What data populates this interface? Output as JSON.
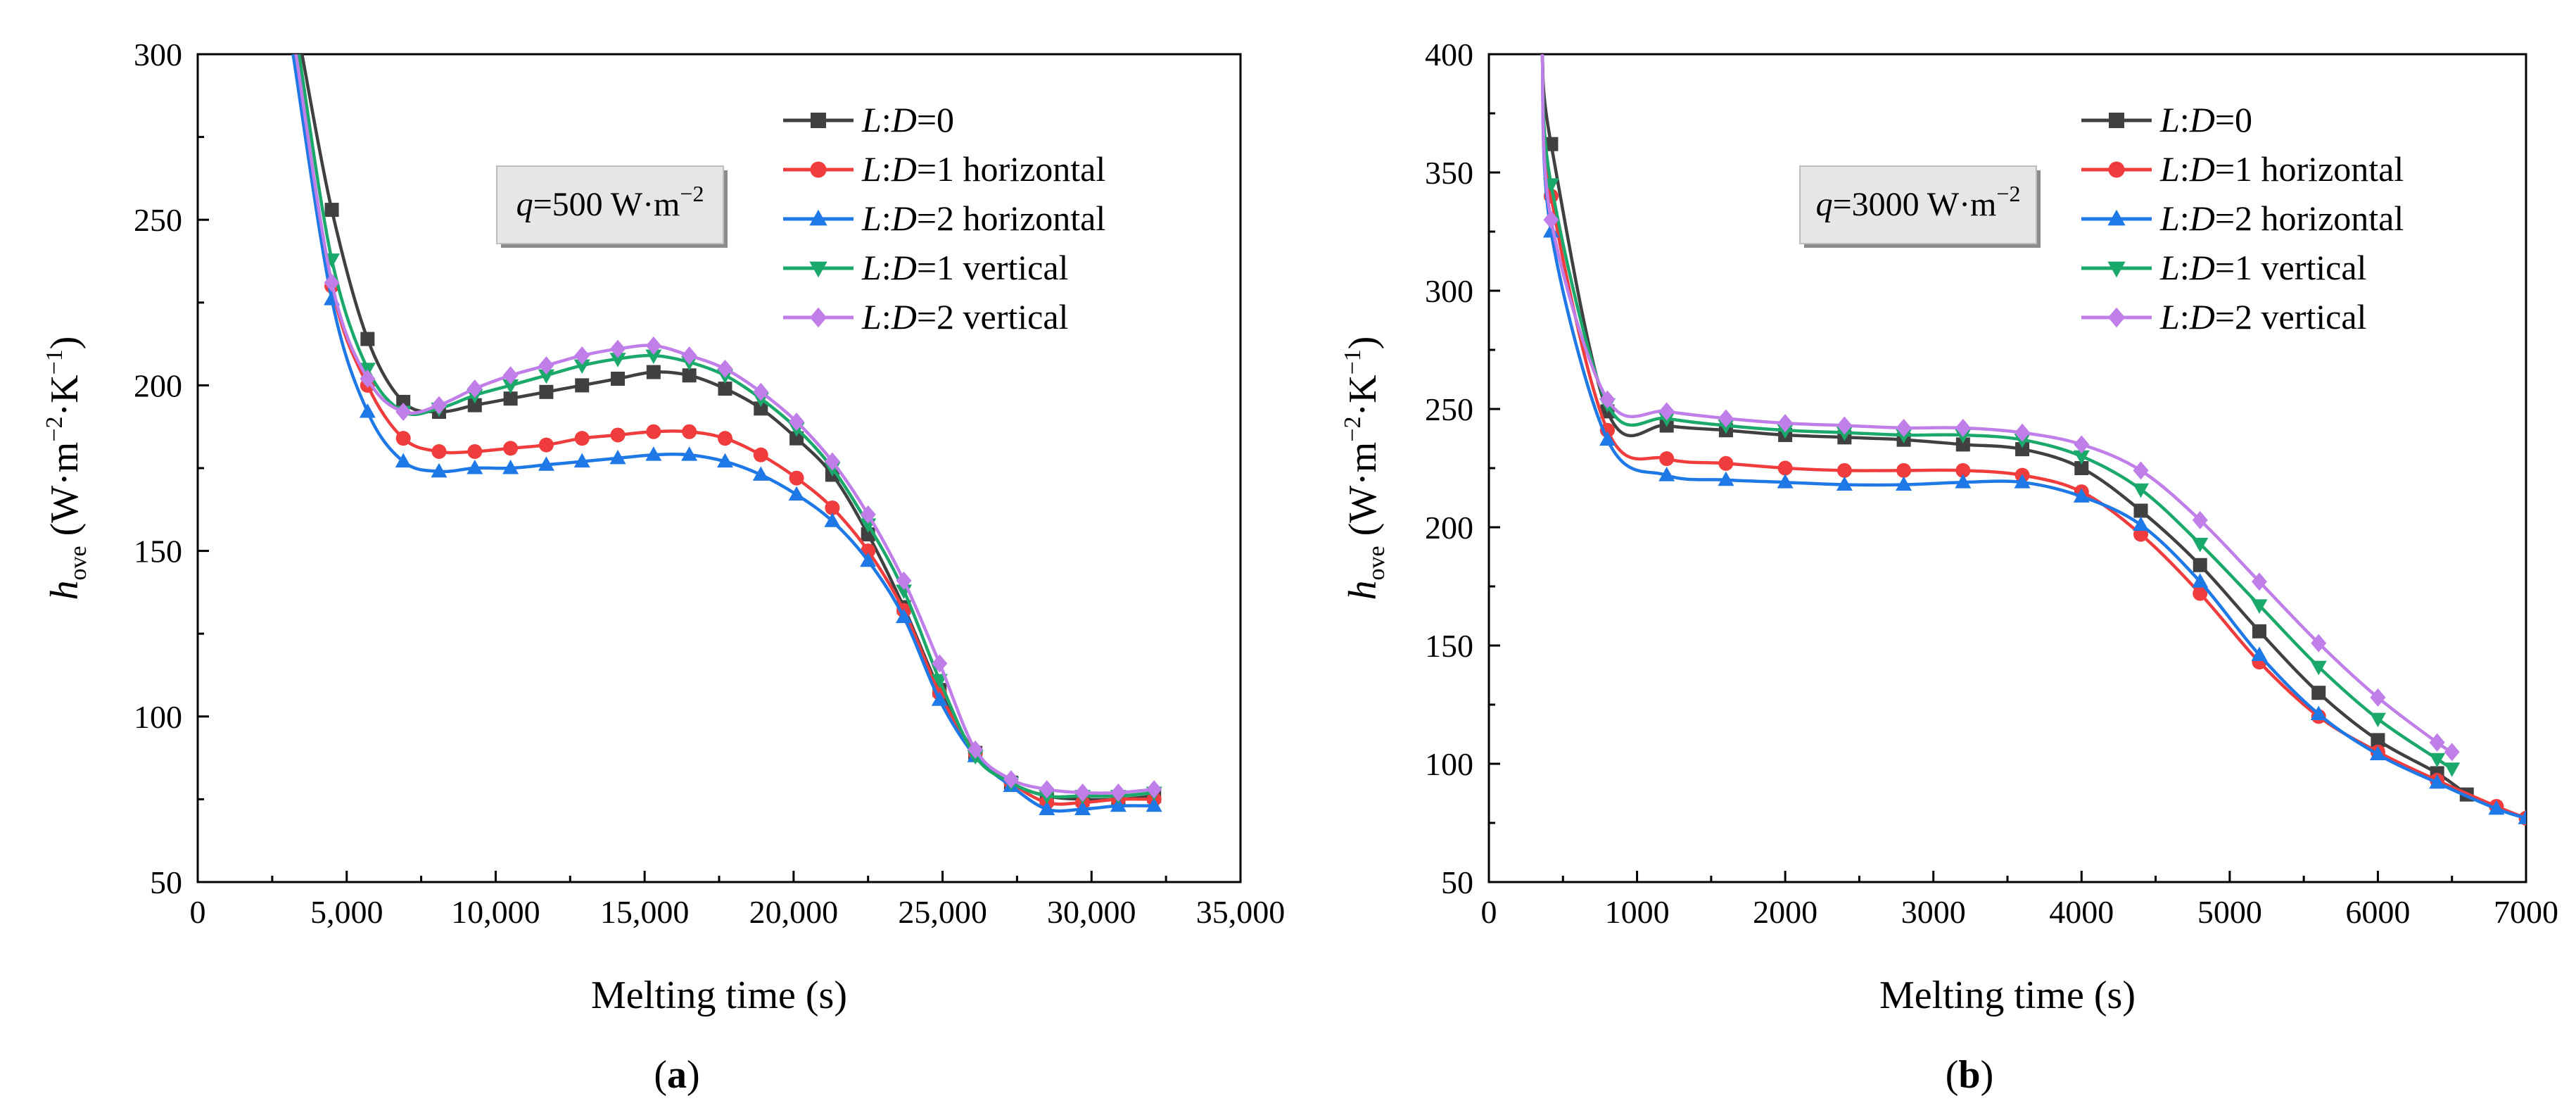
{
  "chart_data": [
    {
      "type": "line",
      "panel_label": "(a)",
      "annotation": {
        "q_symbol": "q",
        "text": "=500 W·m",
        "sup": "−2"
      },
      "xlabel": "Melting time (s)",
      "ylabel": {
        "main": "h",
        "sub": "ove",
        "units_pre": " (W·m",
        "sup1": "−2",
        "mid": "·K",
        "sup2": "−1",
        "close": ")"
      },
      "xlim": [
        0,
        35000
      ],
      "ylim": [
        50,
        300
      ],
      "xticks": [
        0,
        5000,
        10000,
        15000,
        20000,
        25000,
        30000,
        35000
      ],
      "xtick_labels": [
        "0",
        "5,000",
        "10,000",
        "15,000",
        "20,000",
        "25,000",
        "30,000",
        "35,000"
      ],
      "yticks": [
        50,
        100,
        150,
        200,
        250,
        300
      ],
      "ytick_labels": [
        "50",
        "100",
        "150",
        "200",
        "250",
        "300"
      ],
      "legend_position": "top-right",
      "series": [
        {
          "name": "L:D=0",
          "legend_ratio": "L",
          "legend_colon": ":",
          "legend_d": "D",
          "legend_rest": "=0",
          "color": "#404040",
          "marker": "square",
          "x": [
            3500,
            4500,
            5700,
            6900,
            8100,
            9300,
            10500,
            11700,
            12900,
            14100,
            15300,
            16500,
            17700,
            18900,
            20100,
            21300,
            22500,
            23700,
            24900,
            26100,
            27300,
            28500,
            29700,
            30900,
            32100
          ],
          "y": [
            300,
            253,
            214,
            195,
            192,
            194,
            196,
            198,
            200,
            202,
            204,
            203,
            199,
            193,
            184,
            173,
            155,
            133,
            108,
            89,
            80,
            76,
            75,
            75,
            76
          ]
        },
        {
          "name": "L:D=1 horizontal",
          "legend_ratio": "L",
          "legend_colon": ":",
          "legend_d": "D",
          "legend_rest": "=1  horizontal",
          "color": "#f03c3c",
          "marker": "circle",
          "x": [
            3300,
            4500,
            5700,
            6900,
            8100,
            9300,
            10500,
            11700,
            12900,
            14100,
            15300,
            16500,
            17700,
            18900,
            20100,
            21300,
            22500,
            23700,
            24900,
            26100,
            27300,
            28500,
            29700,
            30900,
            32100
          ],
          "y": [
            300,
            230,
            200,
            184,
            180,
            180,
            181,
            182,
            184,
            185,
            186,
            186,
            184,
            179,
            172,
            163,
            150,
            132,
            107,
            89,
            80,
            74,
            74,
            75,
            75
          ]
        },
        {
          "name": "L:D=2 horizontal",
          "legend_ratio": "L",
          "legend_colon": ":",
          "legend_d": "D",
          "legend_rest": "=2  horizontal",
          "color": "#1e78e6",
          "marker": "triangle-up",
          "x": [
            3200,
            4500,
            5700,
            6900,
            8100,
            9300,
            10500,
            11700,
            12900,
            14100,
            15300,
            16500,
            17700,
            18900,
            20100,
            21300,
            22500,
            23700,
            24900,
            26100,
            27300,
            28500,
            29700,
            30900,
            32100
          ],
          "y": [
            300,
            226,
            192,
            177,
            174,
            175,
            175,
            176,
            177,
            178,
            179,
            179,
            177,
            173,
            167,
            159,
            147,
            130,
            105,
            88,
            79,
            72,
            72,
            73,
            73
          ]
        },
        {
          "name": "L:D=1 vertical",
          "legend_ratio": "L",
          "legend_colon": ":",
          "legend_d": "D",
          "legend_rest": "=1  vertical",
          "color": "#1aa86b",
          "marker": "triangle-down",
          "x": [
            3400,
            4500,
            5700,
            6900,
            8100,
            9300,
            10500,
            11700,
            12900,
            14100,
            15300,
            16500,
            17700,
            18900,
            20100,
            21300,
            22500,
            23700,
            24900,
            26100,
            27300,
            28500,
            29700,
            30900,
            32100
          ],
          "y": [
            300,
            238,
            205,
            192,
            193,
            197,
            200,
            203,
            206,
            208,
            209,
            207,
            203,
            196,
            187,
            175,
            158,
            138,
            111,
            88,
            80,
            76,
            76,
            76,
            77
          ]
        },
        {
          "name": "L:D=2 vertical",
          "legend_ratio": "L",
          "legend_colon": ":",
          "legend_d": "D",
          "legend_rest": "=2  vertical",
          "color": "#c07ee8",
          "marker": "diamond",
          "x": [
            3300,
            4500,
            5700,
            6900,
            8100,
            9300,
            10500,
            11700,
            12900,
            14100,
            15300,
            16500,
            17700,
            18900,
            20100,
            21300,
            22500,
            23700,
            24900,
            26100,
            27300,
            28500,
            29700,
            30900,
            32100
          ],
          "y": [
            300,
            231,
            202,
            192,
            194,
            199,
            203,
            206,
            209,
            211,
            212,
            209,
            205,
            198,
            189,
            177,
            161,
            141,
            116,
            90,
            81,
            78,
            77,
            77,
            78
          ]
        }
      ]
    },
    {
      "type": "line",
      "panel_label": "(b)",
      "annotation": {
        "q_symbol": "q",
        "text": "=3000 W·m",
        "sup": "−2"
      },
      "xlabel": "Melting time (s)",
      "ylabel": {
        "main": "h",
        "sub": "ove",
        "units_pre": " (W·m",
        "sup1": "−2",
        "mid": "·K",
        "sup2": "−1",
        "close": ")"
      },
      "xlim": [
        0,
        7000
      ],
      "ylim": [
        50,
        400
      ],
      "xticks": [
        0,
        1000,
        2000,
        3000,
        4000,
        5000,
        6000,
        7000
      ],
      "xtick_labels": [
        "0",
        "1000",
        "2000",
        "3000",
        "4000",
        "5000",
        "6000",
        "7000"
      ],
      "yticks": [
        50,
        100,
        150,
        200,
        250,
        300,
        350,
        400
      ],
      "ytick_labels": [
        "50",
        "100",
        "150",
        "200",
        "250",
        "300",
        "350",
        "400"
      ],
      "legend_position": "top-right",
      "series": [
        {
          "name": "L:D=0",
          "legend_ratio": "L",
          "legend_colon": ":",
          "legend_d": "D",
          "legend_rest": "=0",
          "color": "#404040",
          "marker": "square",
          "x": [
            360,
            420,
            800,
            1200,
            1600,
            2000,
            2400,
            2800,
            3200,
            3600,
            4000,
            4400,
            4800,
            5200,
            5600,
            6000,
            6400,
            6600
          ],
          "y": [
            400,
            362,
            249,
            243,
            241,
            239,
            238,
            237,
            235,
            233,
            225,
            207,
            184,
            156,
            130,
            110,
            96,
            87
          ]
        },
        {
          "name": "L:D=1 horizontal",
          "legend_ratio": "L",
          "legend_colon": ":",
          "legend_d": "D",
          "legend_rest": "=1  horizontal",
          "color": "#f03c3c",
          "marker": "circle",
          "x": [
            360,
            420,
            800,
            1200,
            1600,
            2000,
            2400,
            2800,
            3200,
            3600,
            4000,
            4400,
            4800,
            5200,
            5600,
            6000,
            6400,
            6800,
            7000
          ],
          "y": [
            400,
            340,
            241,
            229,
            227,
            225,
            224,
            224,
            224,
            222,
            215,
            197,
            172,
            143,
            120,
            105,
            93,
            82,
            77
          ]
        },
        {
          "name": "L:D=2 horizontal",
          "legend_ratio": "L",
          "legend_colon": ":",
          "legend_d": "D",
          "legend_rest": "=2  horizontal",
          "color": "#1e78e6",
          "marker": "triangle-up",
          "x": [
            360,
            420,
            800,
            1200,
            1600,
            2000,
            2400,
            2800,
            3200,
            3600,
            4000,
            4400,
            4800,
            5200,
            5600,
            6000,
            6400,
            6800,
            7000
          ],
          "y": [
            400,
            325,
            237,
            222,
            220,
            219,
            218,
            218,
            219,
            219,
            213,
            201,
            177,
            146,
            121,
            104,
            92,
            81,
            77
          ]
        },
        {
          "name": "L:D=1 vertical",
          "legend_ratio": "L",
          "legend_colon": ":",
          "legend_d": "D",
          "legend_rest": "=1  vertical",
          "color": "#1aa86b",
          "marker": "triangle-down",
          "x": [
            360,
            420,
            800,
            1200,
            1600,
            2000,
            2400,
            2800,
            3200,
            3600,
            4000,
            4400,
            4800,
            5200,
            5600,
            6000,
            6400,
            6500
          ],
          "y": [
            400,
            345,
            252,
            246,
            243,
            241,
            240,
            239,
            239,
            237,
            230,
            216,
            193,
            167,
            141,
            119,
            102,
            98
          ]
        },
        {
          "name": "L:D=2 vertical",
          "legend_ratio": "L",
          "legend_colon": ":",
          "legend_d": "D",
          "legend_rest": "=2  vertical",
          "color": "#c07ee8",
          "marker": "diamond",
          "x": [
            360,
            420,
            800,
            1200,
            1600,
            2000,
            2400,
            2800,
            3200,
            3600,
            4000,
            4400,
            4800,
            5200,
            5600,
            6000,
            6400,
            6500
          ],
          "y": [
            400,
            330,
            254,
            249,
            246,
            244,
            243,
            242,
            242,
            240,
            235,
            224,
            203,
            177,
            151,
            128,
            109,
            105
          ]
        }
      ]
    }
  ]
}
